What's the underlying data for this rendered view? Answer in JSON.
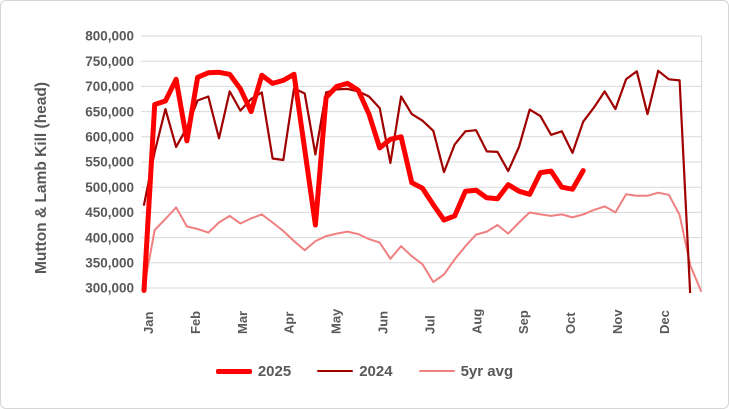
{
  "figure": {
    "background": "#FFFFFF",
    "border_color": "#D6D6D6"
  },
  "chart_data": {
    "type": "line",
    "title": "",
    "xlabel": "",
    "ylabel": "Mutton & Lamb Kill  (head)",
    "ylim": [
      300000,
      800000
    ],
    "ytick_step": 50000,
    "ytick_labels": [
      "800,000",
      "750,000",
      "700,000",
      "650,000",
      "600,000",
      "550,000",
      "500,000",
      "450,000",
      "400,000",
      "350,000",
      "300,000"
    ],
    "x_unit": "week",
    "weeks_per_year": 53,
    "months": [
      "Jan",
      "Feb",
      "Mar",
      "Apr",
      "May",
      "Jun",
      "Jul",
      "Aug",
      "Sep",
      "Oct",
      "Nov",
      "Dec"
    ],
    "grid": true,
    "grid_color": "#D9D9D9",
    "label_color": "#595959",
    "legend_position": "bottom",
    "series": [
      {
        "name": "2025",
        "color": "#FF0000",
        "stroke_width": 5,
        "values": [
          295000,
          664000,
          671000,
          714000,
          592000,
          718000,
          727000,
          728000,
          724000,
          695000,
          650000,
          722000,
          706000,
          712000,
          724000,
          575000,
          425000,
          678000,
          700000,
          706000,
          692000,
          645000,
          578000,
          595000,
          600000,
          509000,
          498000,
          465000,
          435000,
          443000,
          492000,
          494000,
          479000,
          477000,
          505000,
          492000,
          486000,
          529000,
          532000,
          500000,
          496000,
          533000
        ]
      },
      {
        "name": "2024",
        "color": "#A00000",
        "stroke_width": 2.2,
        "values": [
          465000,
          570000,
          655000,
          580000,
          618000,
          672000,
          680000,
          597000,
          690000,
          652000,
          675000,
          688000,
          557000,
          554000,
          696000,
          686000,
          565000,
          688000,
          694000,
          695000,
          690000,
          680000,
          657000,
          548000,
          680000,
          645000,
          632000,
          612000,
          530000,
          585000,
          611000,
          613000,
          571000,
          570000,
          532000,
          580000,
          654000,
          641000,
          604000,
          611000,
          568000,
          630000,
          658000,
          690000,
          655000,
          714000,
          730000,
          645000,
          731000,
          714000,
          712000,
          280000
        ]
      },
      {
        "name": "5yr avg",
        "color": "#F08080",
        "stroke_width": 2,
        "values": [
          300000,
          415000,
          437000,
          460000,
          422000,
          417000,
          410000,
          430000,
          443000,
          428000,
          438000,
          446000,
          430000,
          413000,
          393000,
          375000,
          393000,
          403000,
          408000,
          412000,
          407000,
          397000,
          390000,
          358000,
          383000,
          363000,
          347000,
          312000,
          327000,
          357000,
          383000,
          406000,
          412000,
          425000,
          408000,
          430000,
          450000,
          446000,
          443000,
          446000,
          440000,
          446000,
          455000,
          462000,
          450000,
          486000,
          483000,
          483000,
          489000,
          485000,
          445000,
          344000,
          294000
        ]
      }
    ]
  }
}
